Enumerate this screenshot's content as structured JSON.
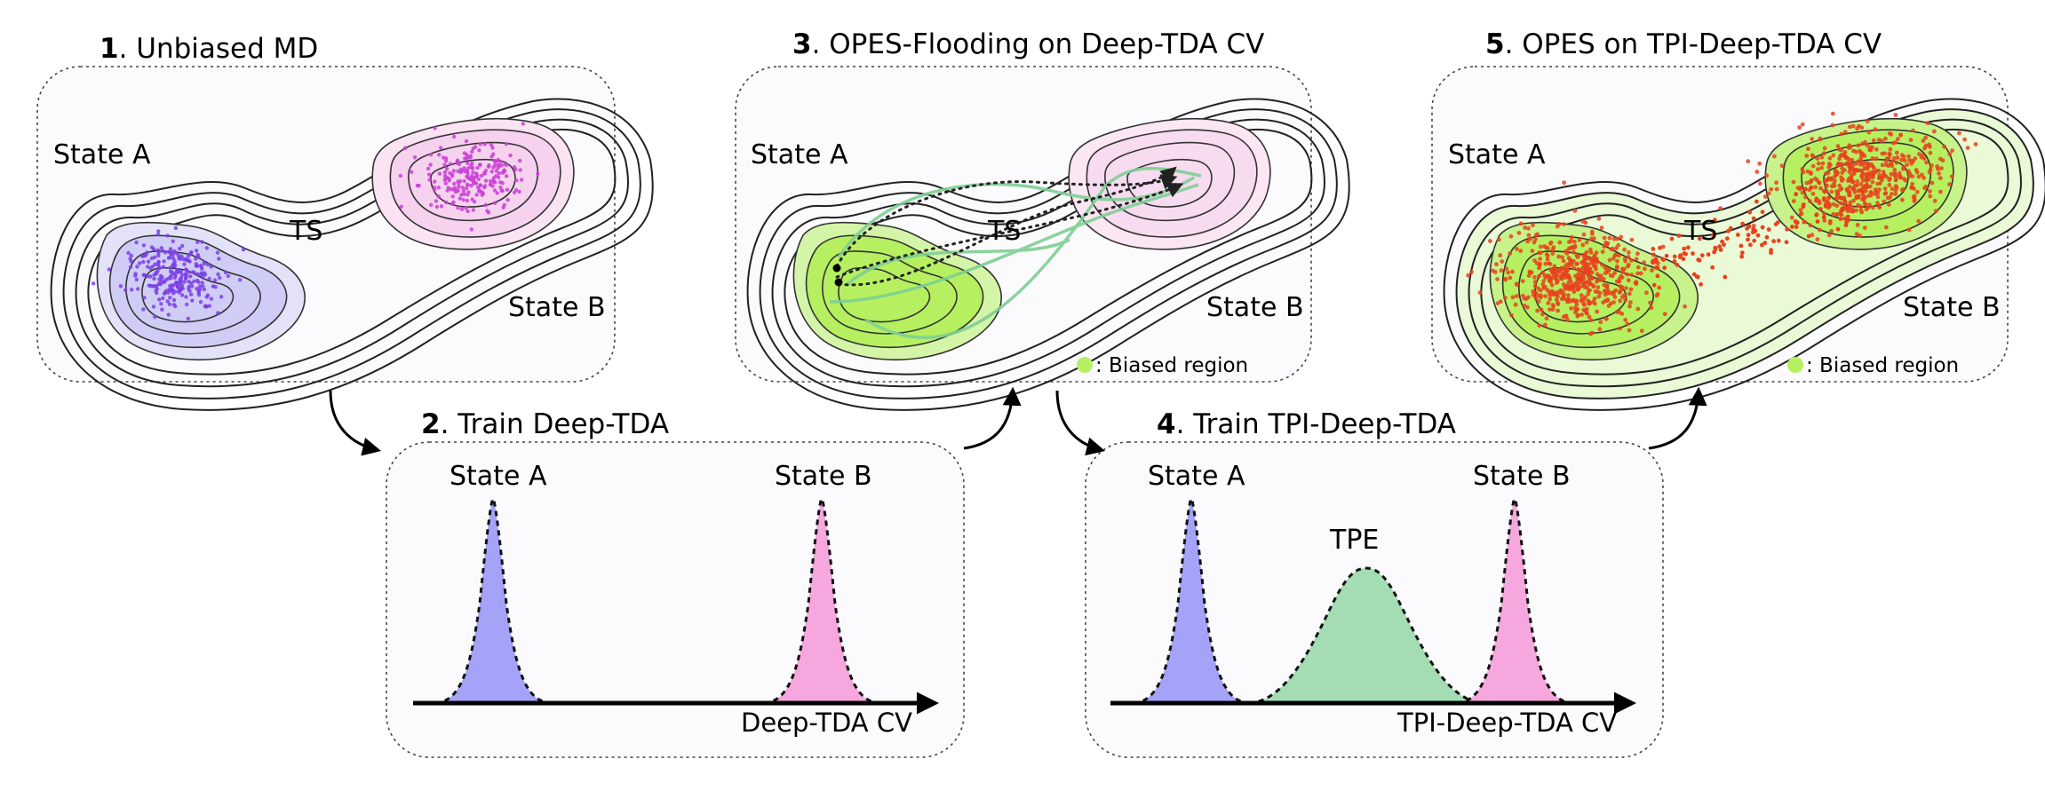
{
  "panels": [
    {
      "num": "1",
      "title": ". Unbiased MD",
      "state_a": "State A",
      "state_b": "State B",
      "ts": "TS"
    },
    {
      "num": "3",
      "title": ". OPES-Flooding on Deep-TDA CV",
      "state_a": "State A",
      "state_b": "State B",
      "ts": "TS",
      "legend": ": Biased region"
    },
    {
      "num": "5",
      "title": ". OPES on TPI-Deep-TDA CV",
      "state_a": "State A",
      "state_b": "State B",
      "ts": "TS",
      "legend": ": Biased region"
    },
    {
      "num": "2",
      "title": ". Train Deep-TDA",
      "peak_a": "State A",
      "peak_b": "State B",
      "axis": "Deep-TDA CV"
    },
    {
      "num": "4",
      "title": ". Train TPI-Deep-TDA",
      "peak_a": "State A",
      "peak_tpe": "TPE",
      "peak_b": "State B",
      "axis": "TPI-Deep-TDA CV"
    }
  ],
  "colors": {
    "state_a_fill": "#a5a3f7",
    "state_b_fill": "#f6a8de",
    "tpe_fill": "#a4dcb4",
    "biased_green": "#b6f060",
    "sample_violet": "#7b3fe4",
    "sample_magenta": "#c93fd6",
    "sample_red": "#e8421e",
    "path_green": "#7fcf93"
  }
}
